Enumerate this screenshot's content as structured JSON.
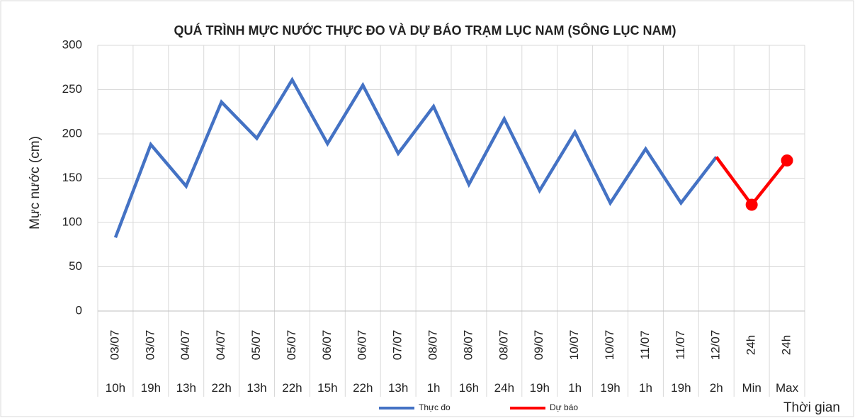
{
  "chart_data": {
    "type": "line",
    "title": "QUÁ TRÌNH MỰC NƯỚC THỰC ĐO VÀ DỰ BÁO TRẠM LỤC NAM (SÔNG LỤC NAM)",
    "y_label": "Mực nước (cm)",
    "x_label": "Thời gian",
    "categories": [
      [
        "03/07",
        "10h"
      ],
      [
        "03/07",
        "19h"
      ],
      [
        "04/07",
        "13h"
      ],
      [
        "04/07",
        "22h"
      ],
      [
        "05/07",
        "13h"
      ],
      [
        "05/07",
        "22h"
      ],
      [
        "06/07",
        "15h"
      ],
      [
        "06/07",
        "22h"
      ],
      [
        "07/07",
        "13h"
      ],
      [
        "08/07",
        "1h"
      ],
      [
        "08/07",
        "16h"
      ],
      [
        "08/07",
        "24h"
      ],
      [
        "09/07",
        "19h"
      ],
      [
        "10/07",
        "1h"
      ],
      [
        "10/07",
        "19h"
      ],
      [
        "11/07",
        "1h"
      ],
      [
        "11/07",
        "19h"
      ],
      [
        "12/07",
        "2h"
      ],
      [
        "24h",
        "Min"
      ],
      [
        "24h",
        "Max"
      ]
    ],
    "series": [
      {
        "name": "Thực đo",
        "color": "#4472c4",
        "marker": false,
        "values": [
          83,
          188,
          141,
          236,
          195,
          261,
          189,
          255,
          178,
          231,
          143,
          217,
          136,
          202,
          122,
          183,
          122,
          174,
          null,
          null
        ]
      },
      {
        "name": "Dự báo",
        "color": "#ff0000",
        "marker": true,
        "values": [
          null,
          null,
          null,
          null,
          null,
          null,
          null,
          null,
          null,
          null,
          null,
          null,
          null,
          null,
          null,
          null,
          null,
          174,
          120,
          170
        ]
      }
    ],
    "ylim": [
      0,
      300
    ],
    "yticks": [
      0,
      50,
      100,
      150,
      200,
      250,
      300
    ],
    "grid": true,
    "legend": "bottom"
  }
}
